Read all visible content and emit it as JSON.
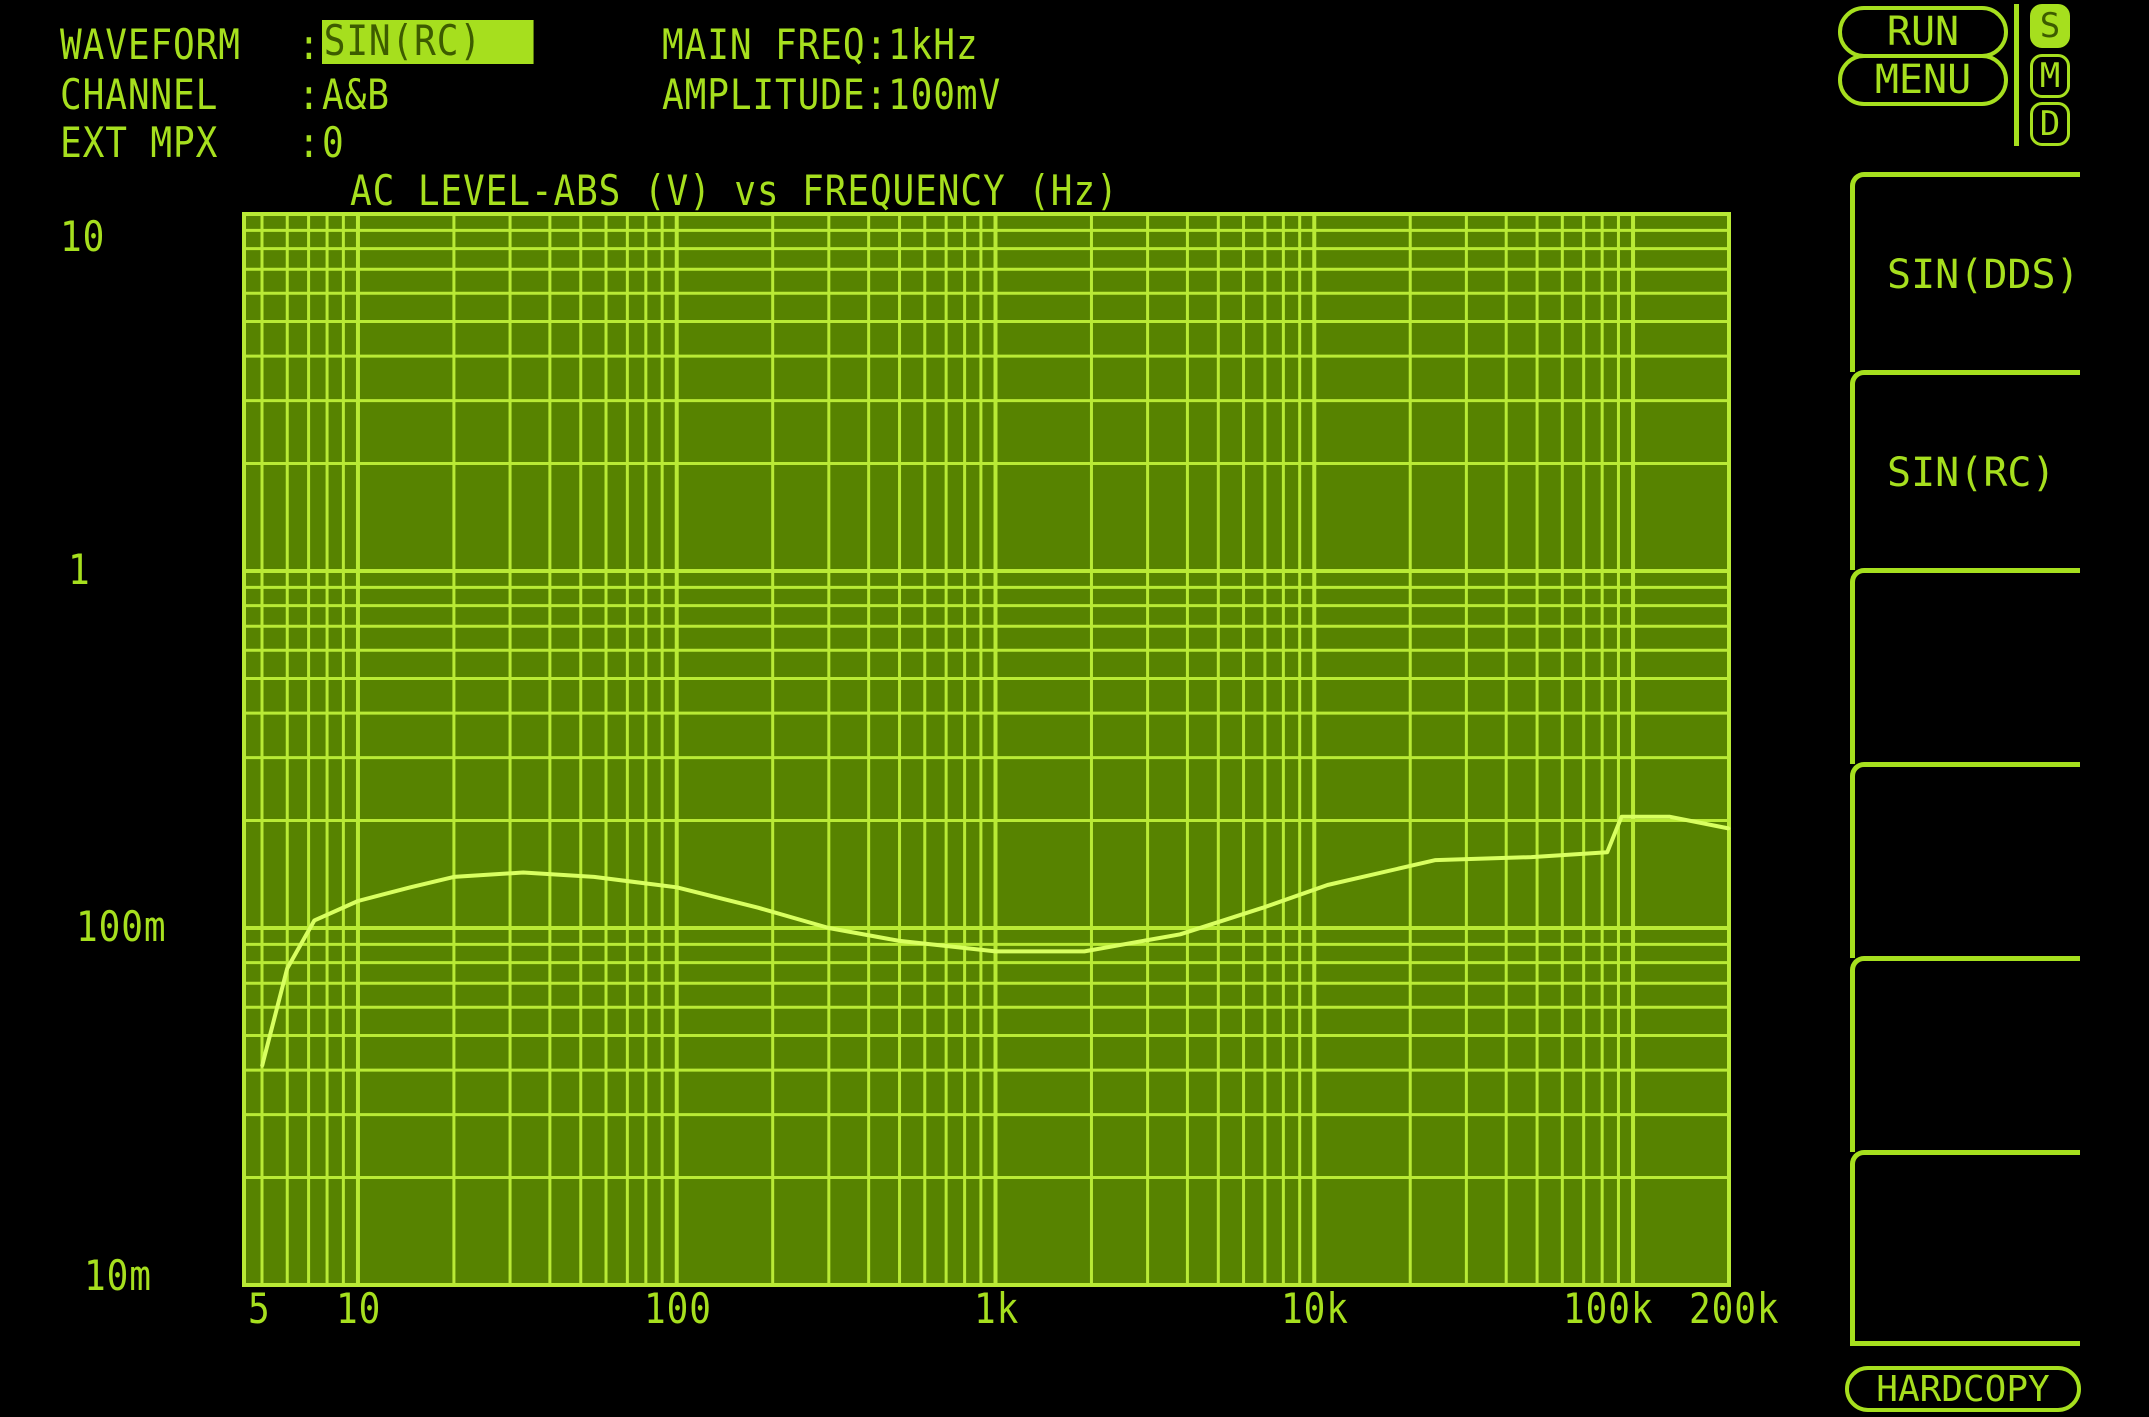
{
  "header": {
    "waveform_label": "WAVEFORM",
    "waveform_value": "SIN(RC)",
    "channel_label": "CHANNEL",
    "channel_value": "A&B",
    "extmpx_label": "EXT MPX",
    "extmpx_value": "0",
    "main_freq": "MAIN FREQ:1kHz",
    "amplitude": "AMPLITUDE:100mV"
  },
  "controls": {
    "run": "RUN",
    "menu": "MENU",
    "indicators": [
      {
        "label": "S",
        "active": true
      },
      {
        "label": "M",
        "active": false
      },
      {
        "label": "D",
        "active": false
      }
    ],
    "softkeys": [
      "SIN(DDS)",
      "SIN(RC)",
      "",
      "",
      "",
      ""
    ],
    "hardcopy": "HARDCOPY"
  },
  "colors": {
    "phosphor": "#a6df1e",
    "plot_bg": "#578300",
    "grid": "#b9ea35",
    "trace": "#d8ff60"
  },
  "chart_data": {
    "type": "line",
    "title": "AC LEVEL-ABS (V) vs FREQUENCY (Hz)",
    "x_scale": "log",
    "y_scale": "log",
    "xlim": [
      5,
      200000
    ],
    "ylim": [
      0.01,
      10
    ],
    "grid": true,
    "x_ticks": [
      {
        "value": 5,
        "label": "5"
      },
      {
        "value": 10,
        "label": "10"
      },
      {
        "value": 100,
        "label": "100"
      },
      {
        "value": 1000,
        "label": "1k"
      },
      {
        "value": 10000,
        "label": "10k"
      },
      {
        "value": 100000,
        "label": "100k"
      },
      {
        "value": 200000,
        "label": "200k"
      }
    ],
    "y_ticks": [
      {
        "value": 10,
        "label": "10"
      },
      {
        "value": 1,
        "label": "1"
      },
      {
        "value": 0.1,
        "label": "100m"
      },
      {
        "value": 0.01,
        "label": "10m"
      }
    ],
    "series": [
      {
        "x": [
          5,
          6,
          7.3,
          10,
          14.6,
          20,
          33,
          55,
          100,
          180,
          300,
          500,
          1000,
          1900,
          3800,
          6900,
          11000,
          24000,
          48000,
          83000,
          92000,
          130000,
          200000
        ],
        "y": [
          0.041,
          0.077,
          0.105,
          0.119,
          0.13,
          0.139,
          0.143,
          0.139,
          0.13,
          0.114,
          0.1,
          0.092,
          0.086,
          0.086,
          0.096,
          0.114,
          0.132,
          0.155,
          0.158,
          0.163,
          0.205,
          0.205,
          0.19
        ]
      }
    ]
  }
}
